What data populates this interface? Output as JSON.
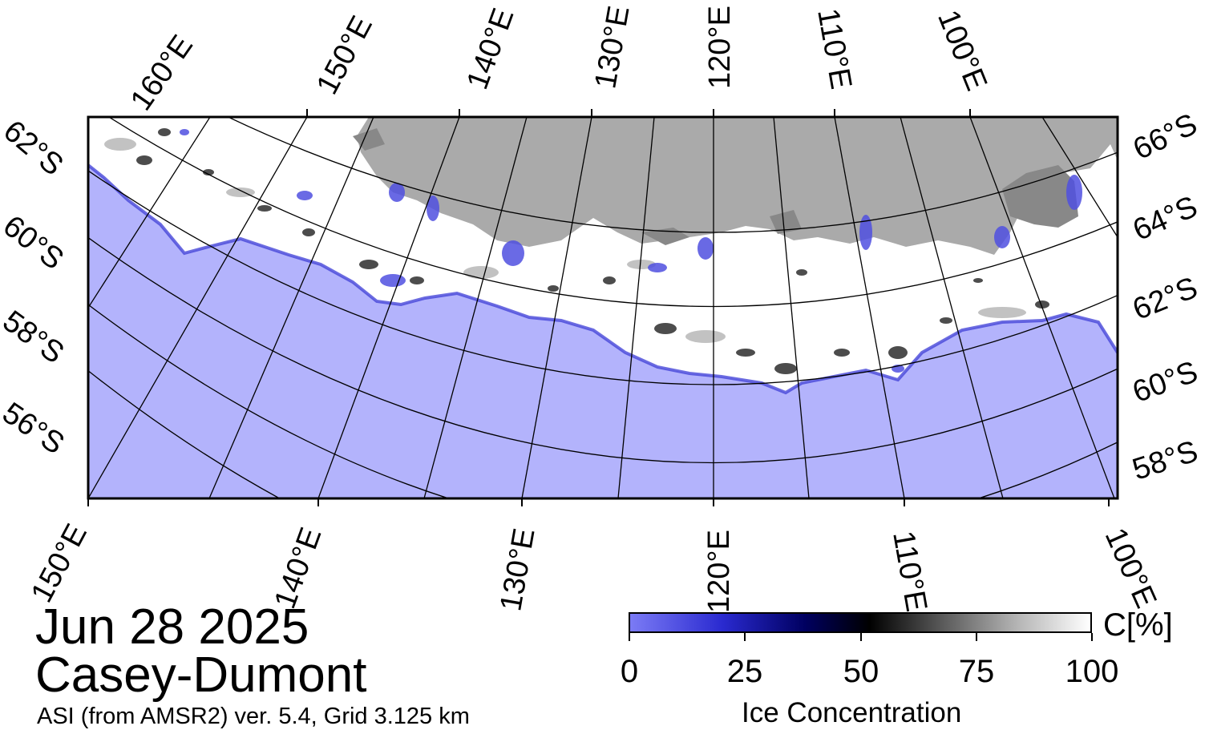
{
  "title": {
    "date": "Jun 28 2025",
    "region": "Casey-Dumont",
    "source": "ASI (from AMSR2) ver. 5.4,  Grid 3.125 km"
  },
  "map": {
    "colors": {
      "ocean": "#b3b3fc",
      "land": "#aaaaaa",
      "ice_shelf": "#888888",
      "ice": "#ffffff"
    },
    "top_lon_labels": [
      "160°E",
      "150°E",
      "140°E",
      "130°E",
      "120°E",
      "110°E",
      "100°E"
    ],
    "bottom_lon_labels": [
      "150°E",
      "140°E",
      "130°E",
      "120°E",
      "110°E",
      "100°E"
    ],
    "left_lat_labels": [
      "62°S",
      "60°S",
      "58°S",
      "56°S"
    ],
    "right_lat_labels": [
      "66°S",
      "64°S",
      "62°S",
      "60°S",
      "58°S"
    ]
  },
  "colorbar": {
    "title": "Ice Concentration",
    "unit": "C[%]",
    "ticks": [
      "0",
      "25",
      "50",
      "75",
      "100"
    ],
    "range": [
      0,
      100
    ]
  }
}
